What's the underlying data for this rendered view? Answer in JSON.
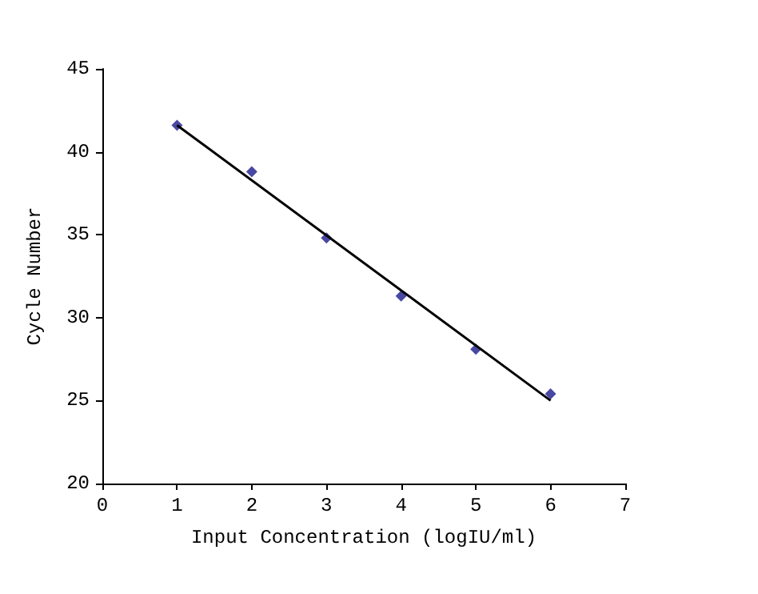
{
  "chart_data": {
    "type": "scatter",
    "xlabel": "Input Concentration (logIU/ml)",
    "ylabel": "Cycle Number",
    "series": [
      {
        "color": "#1a1a8c",
        "x": [
          1,
          2,
          3,
          4,
          5,
          6
        ],
        "values": [
          41.6,
          38.8,
          34.8,
          31.3,
          28.1,
          25.4
        ],
        "marker": "diamond"
      },
      {
        "type": "line",
        "color": "#000000",
        "x": [
          1,
          6
        ],
        "values": [
          41.6,
          25.0
        ],
        "marker": "none",
        "line_style": "solid"
      }
    ],
    "xlim": [
      0,
      7
    ],
    "xticks": [
      0,
      1,
      2,
      3,
      4,
      5,
      6,
      7
    ],
    "ylim": [
      20,
      45
    ],
    "yticks": [
      20,
      25,
      30,
      35,
      40,
      45
    ],
    "grid": false
  }
}
